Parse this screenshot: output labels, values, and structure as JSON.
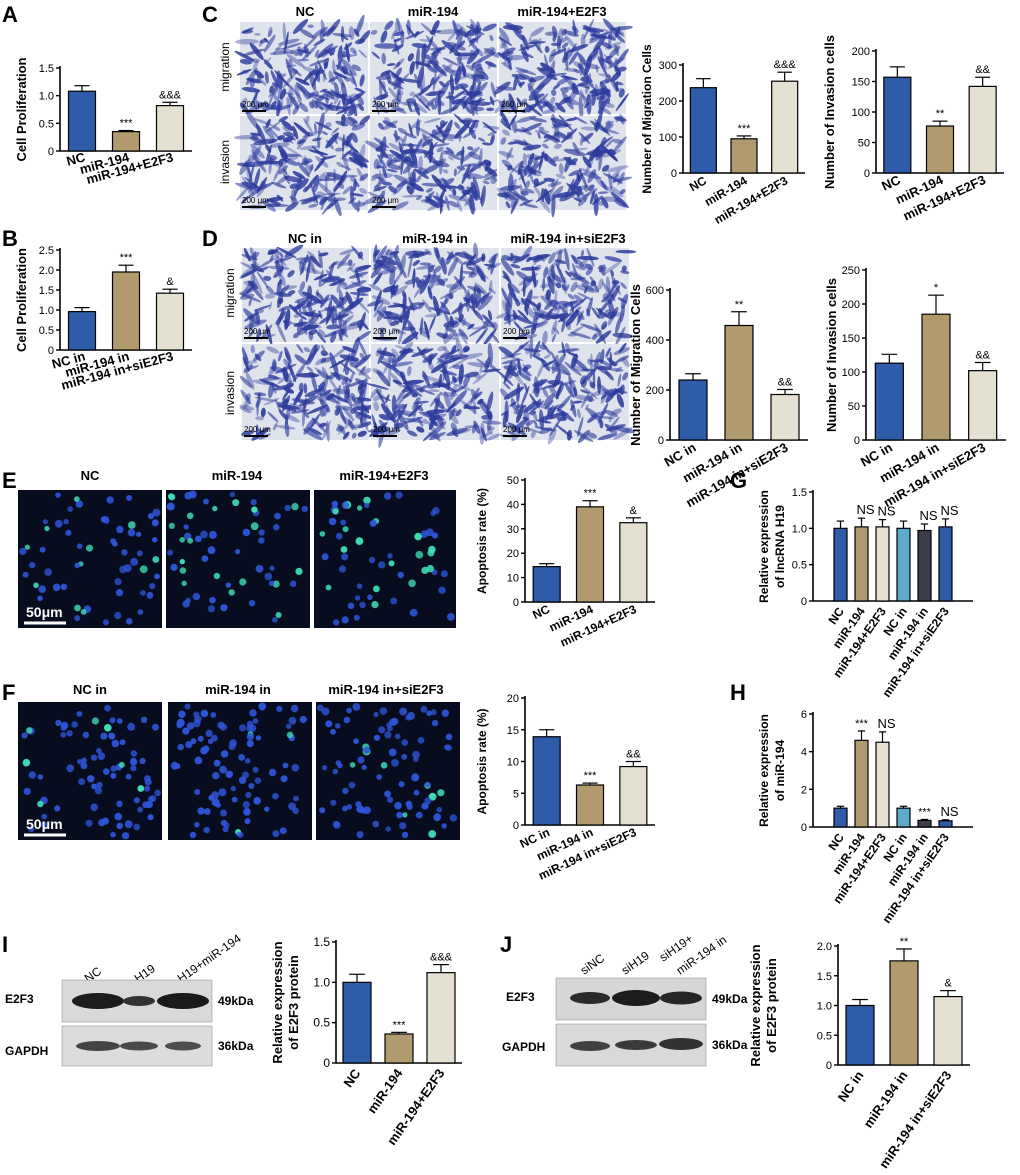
{
  "colors": {
    "blue": "#2e5ca8",
    "tan": "#b19b6e",
    "cream": "#e4e0d2",
    "lightblue": "#5eaac9",
    "darkgray": "#3c3f4a",
    "stain_bg": "#dfe3ec",
    "stain_cell": "#2b3a9c",
    "fluor_bg": "#070d1e",
    "fluor_blue": "#2e55d8",
    "fluor_green": "#3fe0b8"
  },
  "panel_letters": {
    "A": "A",
    "B": "B",
    "C": "C",
    "D": "D",
    "E": "E",
    "F": "F",
    "G": "G",
    "H": "H",
    "I": "I",
    "J": "J"
  },
  "micrographs": {
    "C": {
      "cols": [
        "NC",
        "miR-194",
        "miR-194+E2F3"
      ],
      "rows": [
        "migration",
        "invasion"
      ],
      "scale": "200 μm"
    },
    "D": {
      "cols": [
        "NC in",
        "miR-194 in",
        "miR-194 in+siE2F3"
      ],
      "rows": [
        "migration",
        "invasion"
      ],
      "scale": "200 μm"
    },
    "E": {
      "cols": [
        "NC",
        "miR-194",
        "miR-194+E2F3"
      ],
      "scale": "50μm"
    },
    "F": {
      "cols": [
        "NC in",
        "miR-194 in",
        "miR-194 in+siE2F3"
      ],
      "scale": "50μm"
    }
  },
  "blots": {
    "I": {
      "lanes": [
        "NC",
        "H19",
        "H19+miR-194"
      ],
      "rows": [
        "E2F3",
        "GAPDH"
      ],
      "sizes": [
        "49kDa",
        "36kDa"
      ]
    },
    "J": {
      "lanes": [
        "siNC",
        "siH19",
        "siH19+",
        "miR-194 in"
      ],
      "rows": [
        "E2F3",
        "GAPDH"
      ],
      "sizes": [
        "49kDa",
        "36kDa"
      ]
    }
  },
  "chart_data": [
    {
      "panel": "A",
      "type": "bar",
      "ylabel": "Cell Proliferation",
      "ylim": [
        0,
        1.5
      ],
      "yticks": [
        0,
        0.5,
        1.0,
        1.5
      ],
      "categories": [
        "NC",
        "miR-194",
        "miR-194+E2F3"
      ],
      "values": [
        1.08,
        0.35,
        0.82
      ],
      "errors": [
        0.1,
        0.02,
        0.06
      ],
      "annotations": [
        "",
        "***",
        "&&&"
      ]
    },
    {
      "panel": "B",
      "type": "bar",
      "ylabel": "Cell Proliferation",
      "ylim": [
        0,
        2.5
      ],
      "yticks": [
        0,
        0.5,
        1.0,
        1.5,
        2.0,
        2.5
      ],
      "categories": [
        "NC in",
        "miR-194 in",
        "miR-194 in+siE2F3"
      ],
      "values": [
        0.96,
        1.95,
        1.42
      ],
      "errors": [
        0.1,
        0.17,
        0.1
      ],
      "annotations": [
        "",
        "***",
        "&"
      ]
    },
    {
      "panel": "C-migration",
      "type": "bar",
      "ylabel": "Number of Migration Cells",
      "ylim": [
        0,
        300
      ],
      "yticks": [
        0,
        100,
        200,
        300
      ],
      "categories": [
        "NC",
        "miR-194",
        "miR-194+E2F3"
      ],
      "values": [
        237,
        95,
        255
      ],
      "errors": [
        25,
        8,
        25
      ],
      "annotations": [
        "",
        "***",
        "&&&"
      ]
    },
    {
      "panel": "C-invasion",
      "type": "bar",
      "ylabel": "Number of Invasion cells",
      "ylim": [
        0,
        200
      ],
      "yticks": [
        0,
        50,
        100,
        150,
        200
      ],
      "categories": [
        "NC",
        "miR-194",
        "miR-194+E2F3"
      ],
      "values": [
        157,
        77,
        142
      ],
      "errors": [
        17,
        8,
        15
      ],
      "annotations": [
        "",
        "**",
        "&&"
      ]
    },
    {
      "panel": "D-migration",
      "type": "bar",
      "ylabel": "Number of Migration Cells",
      "ylim": [
        0,
        600
      ],
      "yticks": [
        0,
        200,
        400,
        600
      ],
      "categories": [
        "NC in",
        "miR-194 in",
        "miR-194 in+siE2F3"
      ],
      "values": [
        240,
        458,
        182
      ],
      "errors": [
        25,
        55,
        20
      ],
      "annotations": [
        "",
        "**",
        "&&"
      ]
    },
    {
      "panel": "D-invasion",
      "type": "bar",
      "ylabel": "Number of Invasion cells",
      "ylim": [
        0,
        250
      ],
      "yticks": [
        0,
        50,
        100,
        150,
        200,
        250
      ],
      "categories": [
        "NC in",
        "miR-194 in",
        "miR-194 in+siE2F3"
      ],
      "values": [
        113,
        185,
        102
      ],
      "errors": [
        13,
        28,
        12
      ],
      "annotations": [
        "",
        "*",
        "&&"
      ]
    },
    {
      "panel": "E",
      "type": "bar",
      "ylabel": "Apoptosis rate (%)",
      "ylim": [
        0,
        50
      ],
      "yticks": [
        0,
        10,
        20,
        30,
        40,
        50
      ],
      "categories": [
        "NC",
        "miR-194",
        "miR-194+E2F3"
      ],
      "values": [
        14.5,
        39,
        32.5
      ],
      "errors": [
        1.2,
        2.5,
        2
      ],
      "annotations": [
        "",
        "***",
        "&"
      ]
    },
    {
      "panel": "F",
      "type": "bar",
      "ylabel": "Apoptosis rate (%)",
      "ylim": [
        0,
        20
      ],
      "yticks": [
        0,
        5,
        10,
        15,
        20
      ],
      "categories": [
        "NC in",
        "miR-194 in",
        "miR-194 in+siE2F3"
      ],
      "values": [
        13.9,
        6.3,
        9.2
      ],
      "errors": [
        1.1,
        0.3,
        0.8
      ],
      "annotations": [
        "",
        "***",
        "&&"
      ]
    },
    {
      "panel": "G",
      "type": "bar",
      "ylabel": "Relative expression of lncRNA H19",
      "ylim": [
        0,
        1.5
      ],
      "yticks": [
        0,
        0.5,
        1.0,
        1.5
      ],
      "categories": [
        "NC",
        "miR-194",
        "miR-194+E2F3",
        "NC in",
        "miR-194 in",
        "miR-194 in+siE2F3"
      ],
      "values": [
        1.0,
        1.02,
        1.02,
        1.0,
        0.97,
        1.02
      ],
      "errors": [
        0.1,
        0.12,
        0.1,
        0.1,
        0.09,
        0.11
      ],
      "annotations": [
        "",
        "NS",
        "NS",
        "",
        "NS",
        "NS"
      ]
    },
    {
      "panel": "H",
      "type": "bar",
      "ylabel": "Relative expression of miR-194",
      "ylim": [
        0,
        6
      ],
      "yticks": [
        0,
        2,
        4,
        6
      ],
      "categories": [
        "NC",
        "miR-194",
        "miR-194+E2F3",
        "NC in",
        "miR-194 in",
        "miR-194 in+siE2F3"
      ],
      "values": [
        1.0,
        4.6,
        4.5,
        1.0,
        0.35,
        0.33
      ],
      "errors": [
        0.1,
        0.5,
        0.55,
        0.1,
        0.05,
        0.05
      ],
      "annotations": [
        "",
        "***",
        "NS",
        "",
        "***",
        "NS"
      ]
    },
    {
      "panel": "I",
      "type": "bar",
      "ylabel": "Relative expression of E2F3 protein",
      "ylim": [
        0,
        1.5
      ],
      "yticks": [
        0,
        0.5,
        1.0,
        1.5
      ],
      "categories": [
        "NC",
        "miR-194",
        "miR-194+E2F3"
      ],
      "values": [
        1.0,
        0.36,
        1.12
      ],
      "errors": [
        0.1,
        0.02,
        0.1
      ],
      "annotations": [
        "",
        "***",
        "&&&"
      ]
    },
    {
      "panel": "J",
      "type": "bar",
      "ylabel": "Relative expression of E2F3 protein",
      "ylim": [
        0,
        2.0
      ],
      "yticks": [
        0,
        0.5,
        1.0,
        1.5,
        2.0
      ],
      "categories": [
        "NC in",
        "miR-194 in",
        "miR-194 in+siE2F3"
      ],
      "values": [
        1.0,
        1.75,
        1.15
      ],
      "errors": [
        0.1,
        0.2,
        0.1
      ],
      "annotations": [
        "",
        "**",
        "&"
      ]
    }
  ]
}
